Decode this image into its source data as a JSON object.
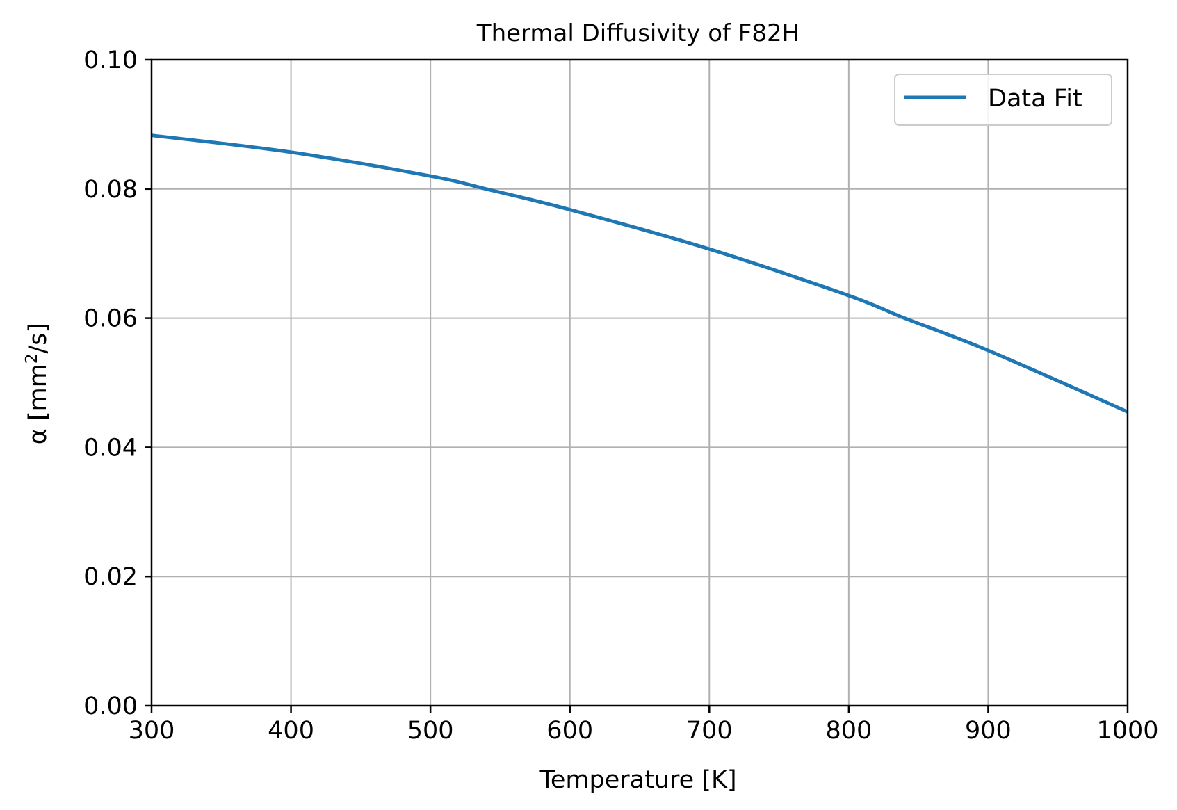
{
  "chart_data": {
    "type": "line",
    "title": "Thermal Diffusivity of F82H",
    "xlabel": "Temperature [K]",
    "ylabel_prefix": "α [mm",
    "ylabel_sup": "2",
    "ylabel_suffix": "/s]",
    "xlim": [
      300,
      1000
    ],
    "ylim": [
      0.0,
      0.1
    ],
    "x_ticks": [
      300,
      400,
      500,
      600,
      700,
      800,
      900,
      1000
    ],
    "x_tick_labels": [
      "300",
      "400",
      "500",
      "600",
      "700",
      "800",
      "900",
      "1000"
    ],
    "y_ticks": [
      0.0,
      0.02,
      0.04,
      0.06,
      0.08,
      0.1
    ],
    "y_tick_labels": [
      "0.00",
      "0.02",
      "0.04",
      "0.06",
      "0.08",
      "0.10"
    ],
    "grid": true,
    "legend_position": "top-right",
    "series": [
      {
        "name": "Data Fit",
        "color": "#1f77b4",
        "x": [
          300,
          400,
          500,
          540,
          600,
          700,
          800,
          840,
          900,
          1000
        ],
        "y": [
          0.0883,
          0.0857,
          0.082,
          0.08,
          0.0768,
          0.0707,
          0.0635,
          0.06,
          0.055,
          0.0455
        ]
      }
    ]
  }
}
